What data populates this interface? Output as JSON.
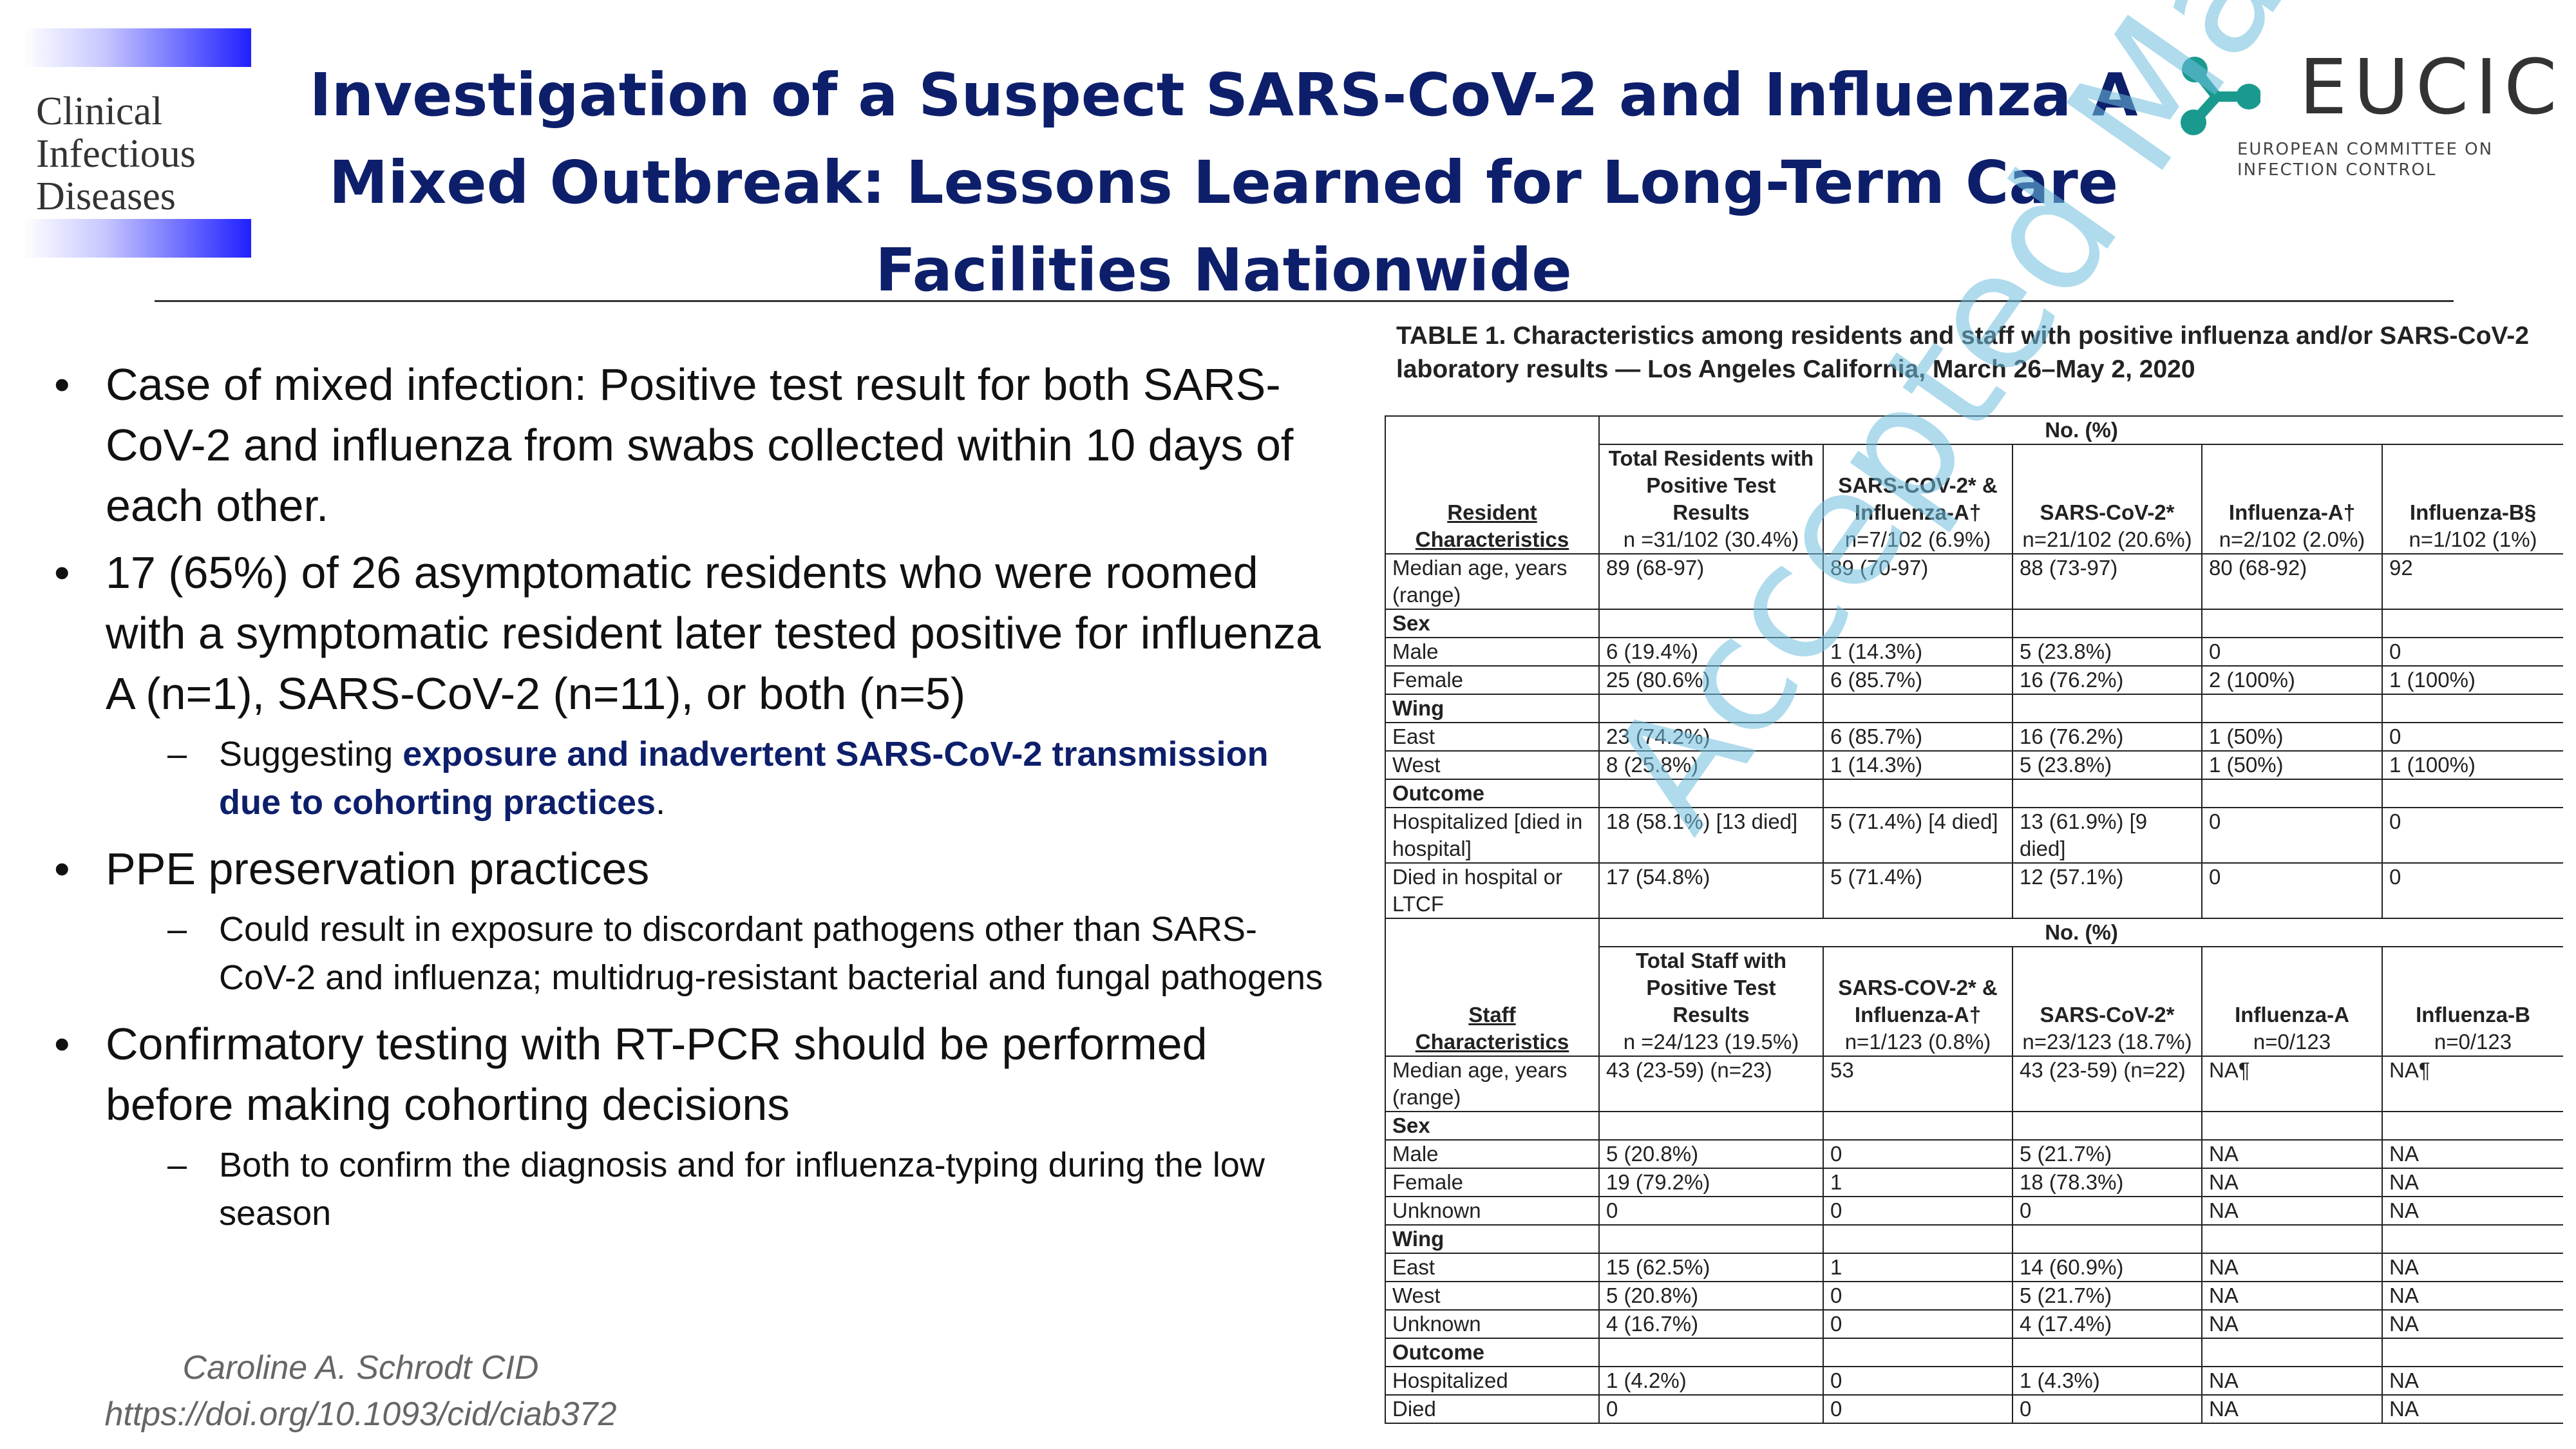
{
  "journal_logo": {
    "lines": [
      "Clinical",
      "Infectious",
      "Diseases"
    ]
  },
  "title": "Investigation of a Suspect SARS-CoV-2 and Influenza A Mixed Outbreak: Lessons Learned for Long-Term Care Facilities Nationwide",
  "eucic": {
    "name": "EUCIC",
    "sub1": "EUROPEAN COMMITTEE ON",
    "sub2": "INFECTION CONTROL",
    "colors": {
      "teal": "#1a9a8f",
      "text": "#333333"
    }
  },
  "bullets": {
    "b1": "Case of mixed infection: Positive test result for both SARS-CoV-2 and influenza from swabs collected within 10 days of each other.",
    "b2": "17 (65%) of 26 asymptomatic residents who were roomed with a symptomatic resident later tested positive for influenza A (n=1), SARS-CoV-2 (n=11), or both (n=5)",
    "b2_sub_prefix": "Suggesting ",
    "b2_sub_highlight": "exposure and inadvertent SARS-CoV-2 transmission due to cohorting practices",
    "b2_sub_suffix": ".",
    "b3": "PPE preservation practices",
    "b3_sub": "Could result in exposure to discordant pathogens other than SARS-CoV-2 and influenza; multidrug-resistant bacterial and fungal pathogens",
    "b4": "Confirmatory testing with RT-PCR should be performed before making cohorting decisions",
    "b4_sub": "Both to confirm the diagnosis and for influenza-typing during the low season"
  },
  "credit": {
    "author": "Caroline A. Schrodt CID",
    "doi": "https://doi.org/10.1093/cid/ciab372"
  },
  "table": {
    "caption_label": "TABLE 1.",
    "caption": " Characteristics among residents and staff with positive influenza and/or SARS-CoV-2 laboratory results — Los Angeles California, March 26–May 2, 2020",
    "no_pct": "No. (%)",
    "res_head": {
      "char": "Resident Characteristics",
      "col1_l1": "Total Residents with Positive Test Results",
      "col1_n": "n =31/102 (30.4%)",
      "col2_l1": "SARS-COV-2* & Influenza-A†",
      "col2_n": "n=7/102 (6.9%)",
      "col3_l1": "SARS-CoV-2*",
      "col3_n": "n=21/102 (20.6%)",
      "col4_l1": "Influenza-A†",
      "col4_n": "n=2/102 (2.0%)",
      "col5_l1": "Influenza-B§",
      "col5_n": "n=1/102 (1%)"
    },
    "res_rows": [
      {
        "label": "Median age, years (range)",
        "v": [
          "89 (68-97)",
          "89 (70-97)",
          "88 (73-97)",
          "80 (68-92)",
          "92"
        ]
      },
      {
        "section": "Sex"
      },
      {
        "label": "Male",
        "v": [
          "6 (19.4%)",
          "1 (14.3%)",
          "5 (23.8%)",
          "0",
          "0"
        ]
      },
      {
        "label": "Female",
        "v": [
          "25 (80.6%)",
          "6 (85.7%)",
          "16 (76.2%)",
          "2 (100%)",
          "1 (100%)"
        ]
      },
      {
        "section": "Wing"
      },
      {
        "label": "East",
        "v": [
          "23 (74.2%)",
          "6 (85.7%)",
          "16 (76.2%)",
          "1 (50%)",
          "0"
        ]
      },
      {
        "label": "West",
        "v": [
          "8 (25.8%)",
          "1 (14.3%)",
          "5 (23.8%)",
          "1 (50%)",
          "1 (100%)"
        ]
      },
      {
        "section": "Outcome"
      },
      {
        "label": "Hospitalized [died in hospital]",
        "v": [
          "18 (58.1%) [13 died]",
          "5 (71.4%) [4 died]",
          "13 (61.9%) [9 died]",
          "0",
          "0"
        ]
      },
      {
        "label": "Died in hospital or LTCF",
        "v": [
          "17 (54.8%)",
          "5 (71.4%)",
          "12 (57.1%)",
          "0",
          "0"
        ]
      }
    ],
    "staff_head": {
      "char": "Staff Characteristics",
      "col1_l1": "Total Staff with Positive Test Results",
      "col1_n": "n =24/123 (19.5%)",
      "col2_l1": "SARS-COV-2* & Influenza-A†",
      "col2_n": "n=1/123 (0.8%)",
      "col3_l1": "SARS-CoV-2*",
      "col3_n": "n=23/123 (18.7%)",
      "col4_l1": "Influenza-A",
      "col4_n": "n=0/123",
      "col5_l1": "Influenza-B",
      "col5_n": "n=0/123"
    },
    "staff_rows": [
      {
        "label": "Median age, years (range)",
        "v": [
          "43 (23-59) (n=23)",
          "53",
          "43 (23-59) (n=22)",
          "NA¶",
          "NA¶"
        ]
      },
      {
        "section": "Sex"
      },
      {
        "label": "Male",
        "v": [
          "5 (20.8%)",
          "0",
          "5 (21.7%)",
          "NA",
          "NA"
        ]
      },
      {
        "label": "Female",
        "v": [
          "19 (79.2%)",
          "1",
          "18 (78.3%)",
          "NA",
          "NA"
        ]
      },
      {
        "label": "Unknown",
        "v": [
          "0",
          "0",
          "0",
          "NA",
          "NA"
        ]
      },
      {
        "section": "Wing"
      },
      {
        "label": "East",
        "v": [
          "15 (62.5%)",
          "1",
          "14 (60.9%)",
          "NA",
          "NA"
        ]
      },
      {
        "label": "West",
        "v": [
          "5 (20.8%)",
          "0",
          "5 (21.7%)",
          "NA",
          "NA"
        ]
      },
      {
        "label": "Unknown",
        "v": [
          "4 (16.7%)",
          "0",
          "4 (17.4%)",
          "NA",
          "NA"
        ]
      },
      {
        "section": "Outcome"
      },
      {
        "label": "Hospitalized",
        "v": [
          "1 (4.2%)",
          "0",
          "1 (4.3%)",
          "NA",
          "NA"
        ]
      },
      {
        "label": "Died",
        "v": [
          "0",
          "0",
          "0",
          "NA",
          "NA"
        ]
      }
    ]
  },
  "watermark": "Accepted Manuscript"
}
